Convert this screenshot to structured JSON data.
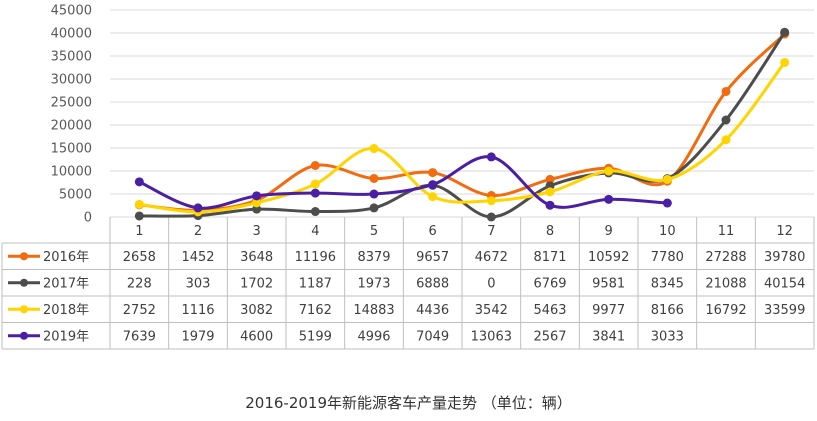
{
  "chart_data": {
    "type": "line",
    "title": "2016-2019年新能源客车产量走势 （单位：辆）",
    "categories": [
      "1",
      "2",
      "3",
      "4",
      "5",
      "6",
      "7",
      "8",
      "9",
      "10",
      "11",
      "12"
    ],
    "ylim": [
      0,
      45000
    ],
    "yticks": [
      0,
      5000,
      10000,
      15000,
      20000,
      25000,
      30000,
      35000,
      40000,
      45000
    ],
    "grid": true,
    "legend": "data-table",
    "series": [
      {
        "name": "2016年",
        "color": "#F26B0F",
        "values": [
          2658,
          1452,
          3648,
          11196,
          8379,
          9657,
          4672,
          8171,
          10592,
          7780,
          27288,
          39780
        ],
        "labels": [
          "2658",
          "1452",
          "3648",
          "11196",
          "8379",
          "9657",
          "4672",
          "8171",
          "10592",
          "7780",
          "27288",
          "39780"
        ]
      },
      {
        "name": "2017年",
        "color": "#4D4D4D",
        "values": [
          228,
          303,
          1702,
          1187,
          1973,
          6888,
          0,
          6769,
          9581,
          8345,
          21088,
          40154
        ],
        "labels": [
          "228",
          "303",
          "1702",
          "1187",
          "1973",
          "6888",
          "0",
          "6769",
          "9581",
          "8345",
          "21088",
          "40154"
        ]
      },
      {
        "name": "2018年",
        "color": "#FFD400",
        "values": [
          2752,
          1116,
          3082,
          7162,
          14883,
          4436,
          3542,
          5463,
          9977,
          8166,
          16792,
          33599
        ],
        "labels": [
          "2752",
          "1116",
          "3082",
          "7162",
          "14883",
          "4436",
          "3542",
          "5463",
          "9977",
          "8166",
          "16792",
          "33599"
        ]
      },
      {
        "name": "2019年",
        "color": "#4B1FA3",
        "values": [
          7639,
          1979,
          4600,
          5199,
          4996,
          7049,
          13063,
          2567,
          3841,
          3033,
          null,
          null
        ],
        "labels": [
          "7639",
          "1979",
          "4600",
          "5199",
          "4996",
          "7049",
          "13063",
          "2567",
          "3841",
          "3033",
          "",
          ""
        ]
      }
    ]
  }
}
